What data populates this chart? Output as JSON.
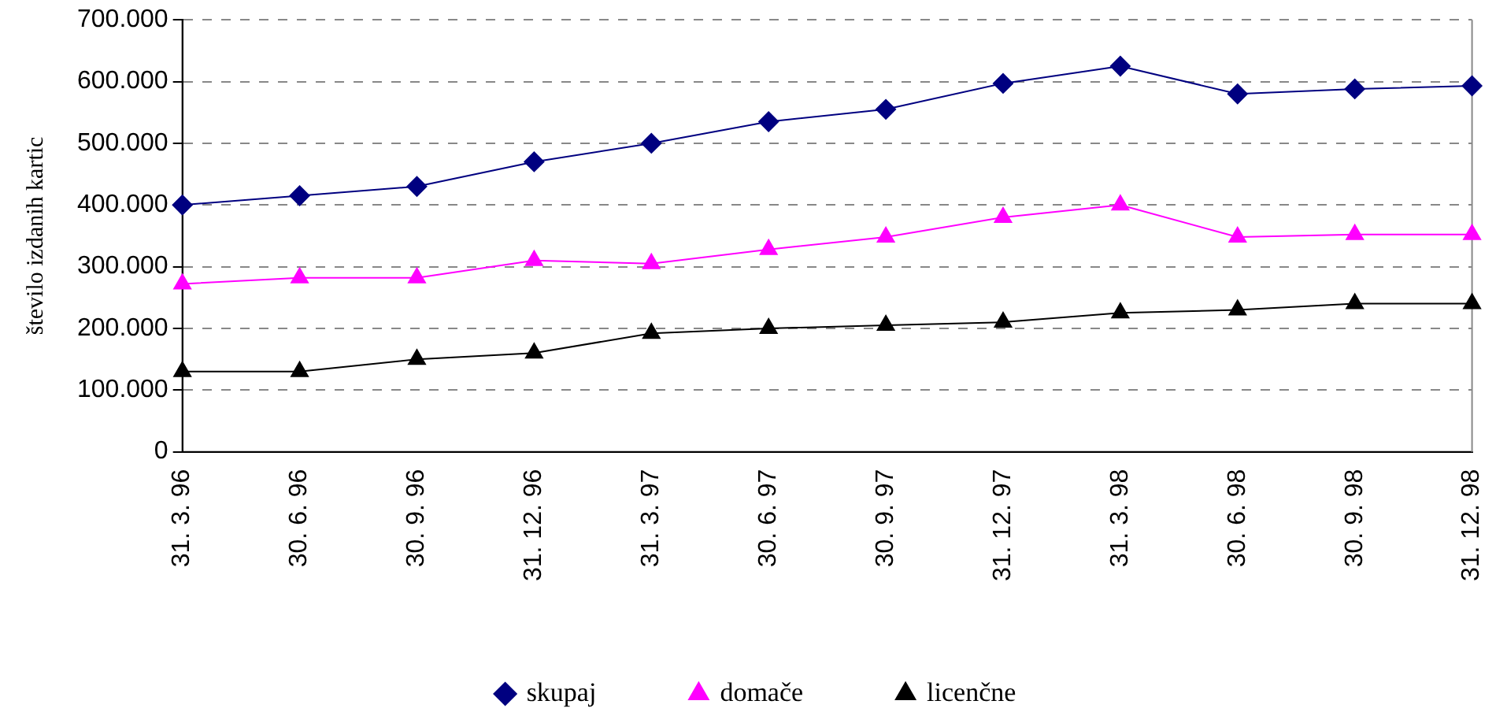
{
  "chart_data": {
    "type": "line",
    "ylabel": "število izdanih kartic",
    "categories": [
      "31. 3. 96",
      "30. 6. 96",
      "30. 9. 96",
      "31. 12. 96",
      "31. 3. 97",
      "30. 6. 97",
      "30. 9. 97",
      "31. 12. 97",
      "31. 3. 98",
      "30. 6. 98",
      "30. 9. 98",
      "31. 12. 98"
    ],
    "series": [
      {
        "name": "skupaj",
        "color": "#000080",
        "marker": "diamond",
        "values": [
          400000,
          415000,
          430000,
          470000,
          500000,
          535000,
          555000,
          597000,
          625000,
          580000,
          588000,
          593000
        ]
      },
      {
        "name": "domače",
        "color": "#ff00ff",
        "marker": "triangle",
        "values": [
          272000,
          282000,
          282000,
          310000,
          305000,
          328000,
          348000,
          380000,
          400000,
          348000,
          352000,
          352000
        ]
      },
      {
        "name": "licenčne",
        "color": "#000000",
        "marker": "triangle",
        "values": [
          130000,
          130000,
          150000,
          160000,
          192000,
          200000,
          205000,
          210000,
          225000,
          230000,
          240000,
          240000
        ]
      }
    ],
    "ylim": [
      0,
      700000
    ],
    "yticks": [
      0,
      {
        "value": 100000,
        "label": "100.000"
      },
      {
        "value": 200000,
        "label": "200.000"
      },
      {
        "value": 300000,
        "label": "300.000"
      },
      {
        "value": 400000,
        "label": "400.000"
      },
      {
        "value": 500000,
        "label": "500.000"
      },
      {
        "value": 600000,
        "label": "600.000"
      },
      {
        "value": 700000,
        "label": "700.000"
      }
    ],
    "grid": "y",
    "legend": "bottom",
    "line_style": "solid"
  }
}
